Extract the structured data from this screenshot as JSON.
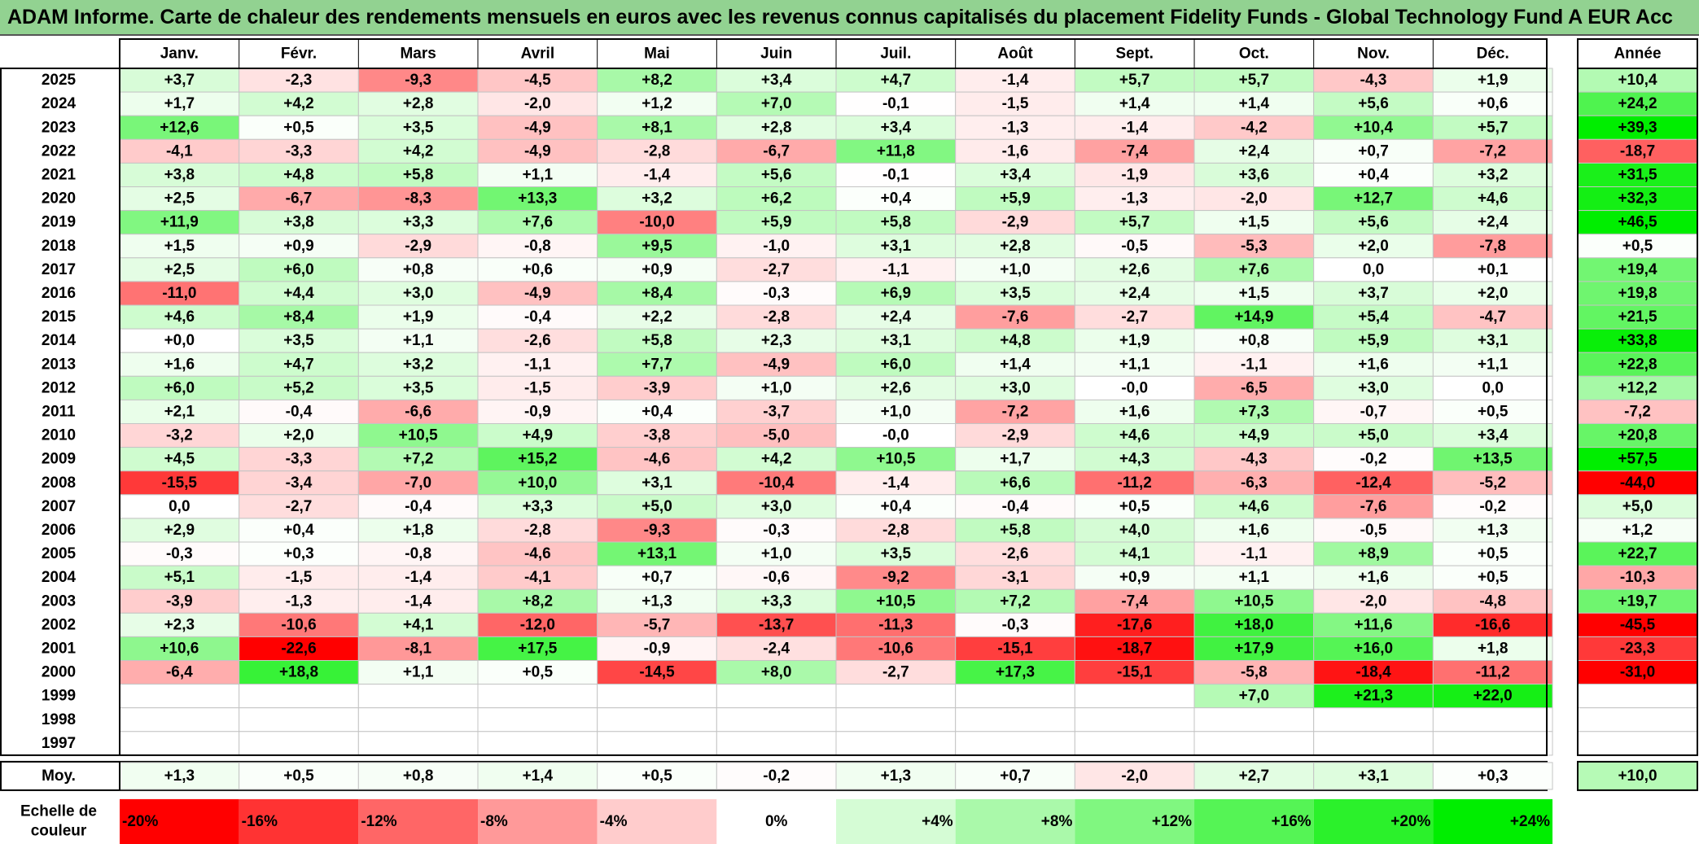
{
  "title": "ADAM Informe. Carte de chaleur des rendements mensuels en euros avec les revenus connus capitalisés du placement Fidelity Funds - Global Technology Fund A EUR Acc",
  "chart_data": {
    "type": "heatmap",
    "months": [
      "Janv.",
      "Févr.",
      "Mars",
      "Avril",
      "Mai",
      "Juin",
      "Juil.",
      "Août",
      "Sept.",
      "Oct.",
      "Nov.",
      "Déc."
    ],
    "year_header": "Année",
    "rows": [
      {
        "year": "2025",
        "values": [
          "+3,7",
          "-2,3",
          "-9,3",
          "-4,5",
          "+8,2",
          "+3,4",
          "+4,7",
          "-1,4",
          "+5,7",
          "+5,7",
          "-4,3",
          "+1,9"
        ],
        "annual": "+10,4"
      },
      {
        "year": "2024",
        "values": [
          "+1,7",
          "+4,2",
          "+2,8",
          "-2,0",
          "+1,2",
          "+7,0",
          "-0,1",
          "-1,5",
          "+1,4",
          "+1,4",
          "+5,6",
          "+0,6"
        ],
        "annual": "+24,2"
      },
      {
        "year": "2023",
        "values": [
          "+12,6",
          "+0,5",
          "+3,5",
          "-4,9",
          "+8,1",
          "+2,8",
          "+3,4",
          "-1,3",
          "-1,4",
          "-4,2",
          "+10,4",
          "+5,7"
        ],
        "annual": "+39,3"
      },
      {
        "year": "2022",
        "values": [
          "-4,1",
          "-3,3",
          "+4,2",
          "-4,9",
          "-2,8",
          "-6,7",
          "+11,8",
          "-1,6",
          "-7,4",
          "+2,4",
          "+0,7",
          "-7,2"
        ],
        "annual": "-18,7"
      },
      {
        "year": "2021",
        "values": [
          "+3,8",
          "+4,8",
          "+5,8",
          "+1,1",
          "-1,4",
          "+5,6",
          "-0,1",
          "+3,4",
          "-1,9",
          "+3,6",
          "+0,4",
          "+3,2"
        ],
        "annual": "+31,5"
      },
      {
        "year": "2020",
        "values": [
          "+2,5",
          "-6,7",
          "-8,3",
          "+13,3",
          "+3,2",
          "+6,2",
          "+0,4",
          "+5,9",
          "-1,3",
          "-2,0",
          "+12,7",
          "+4,6"
        ],
        "annual": "+32,3"
      },
      {
        "year": "2019",
        "values": [
          "+11,9",
          "+3,8",
          "+3,3",
          "+7,6",
          "-10,0",
          "+5,9",
          "+5,8",
          "-2,9",
          "+5,7",
          "+1,5",
          "+5,6",
          "+2,4"
        ],
        "annual": "+46,5"
      },
      {
        "year": "2018",
        "values": [
          "+1,5",
          "+0,9",
          "-2,9",
          "-0,8",
          "+9,5",
          "-1,0",
          "+3,1",
          "+2,8",
          "-0,5",
          "-5,3",
          "+2,0",
          "-7,8"
        ],
        "annual": "+0,5"
      },
      {
        "year": "2017",
        "values": [
          "+2,5",
          "+6,0",
          "+0,8",
          "+0,6",
          "+0,9",
          "-2,7",
          "-1,1",
          "+1,0",
          "+2,6",
          "+7,6",
          "0,0",
          "+0,1"
        ],
        "annual": "+19,4"
      },
      {
        "year": "2016",
        "values": [
          "-11,0",
          "+4,4",
          "+3,0",
          "-4,9",
          "+8,4",
          "-0,3",
          "+6,9",
          "+3,5",
          "+2,4",
          "+1,5",
          "+3,7",
          "+2,0"
        ],
        "annual": "+19,8"
      },
      {
        "year": "2015",
        "values": [
          "+4,6",
          "+8,4",
          "+1,9",
          "-0,4",
          "+2,2",
          "-2,8",
          "+2,4",
          "-7,6",
          "-2,7",
          "+14,9",
          "+5,4",
          "-4,7"
        ],
        "annual": "+21,5"
      },
      {
        "year": "2014",
        "values": [
          "+0,0",
          "+3,5",
          "+1,1",
          "-2,6",
          "+5,8",
          "+2,3",
          "+3,1",
          "+4,8",
          "+1,9",
          "+0,8",
          "+5,9",
          "+3,1"
        ],
        "annual": "+33,8"
      },
      {
        "year": "2013",
        "values": [
          "+1,6",
          "+4,7",
          "+3,2",
          "-1,1",
          "+7,7",
          "-4,9",
          "+6,0",
          "+1,4",
          "+1,1",
          "-1,1",
          "+1,6",
          "+1,1"
        ],
        "annual": "+22,8"
      },
      {
        "year": "2012",
        "values": [
          "+6,0",
          "+5,2",
          "+3,5",
          "-1,5",
          "-3,9",
          "+1,0",
          "+2,6",
          "+3,0",
          "-0,0",
          "-6,5",
          "+3,0",
          "0,0"
        ],
        "annual": "+12,2"
      },
      {
        "year": "2011",
        "values": [
          "+2,1",
          "-0,4",
          "-6,6",
          "-0,9",
          "+0,4",
          "-3,7",
          "+1,0",
          "-7,2",
          "+1,6",
          "+7,3",
          "-0,7",
          "+0,5"
        ],
        "annual": "-7,2"
      },
      {
        "year": "2010",
        "values": [
          "-3,2",
          "+2,0",
          "+10,5",
          "+4,9",
          "-3,8",
          "-5,0",
          "-0,0",
          "-2,9",
          "+4,6",
          "+4,9",
          "+5,0",
          "+3,4"
        ],
        "annual": "+20,8"
      },
      {
        "year": "2009",
        "values": [
          "+4,5",
          "-3,3",
          "+7,2",
          "+15,2",
          "-4,6",
          "+4,2",
          "+10,5",
          "+1,7",
          "+4,3",
          "-4,3",
          "-0,2",
          "+13,5"
        ],
        "annual": "+57,5"
      },
      {
        "year": "2008",
        "values": [
          "-15,5",
          "-3,4",
          "-7,0",
          "+10,0",
          "+3,1",
          "-10,4",
          "-1,4",
          "+6,6",
          "-11,2",
          "-6,3",
          "-12,4",
          "-5,2"
        ],
        "annual": "-44,0"
      },
      {
        "year": "2007",
        "values": [
          "0,0",
          "-2,7",
          "-0,4",
          "+3,3",
          "+5,0",
          "+3,0",
          "+0,4",
          "-0,4",
          "+0,5",
          "+4,6",
          "-7,6",
          "-0,2"
        ],
        "annual": "+5,0"
      },
      {
        "year": "2006",
        "values": [
          "+2,9",
          "+0,4",
          "+1,8",
          "-2,8",
          "-9,3",
          "-0,3",
          "-2,8",
          "+5,8",
          "+4,0",
          "+1,6",
          "-0,5",
          "+1,3"
        ],
        "annual": "+1,2"
      },
      {
        "year": "2005",
        "values": [
          "-0,3",
          "+0,3",
          "-0,8",
          "-4,6",
          "+13,1",
          "+1,0",
          "+3,5",
          "-2,6",
          "+4,1",
          "-1,1",
          "+8,9",
          "+0,5"
        ],
        "annual": "+22,7"
      },
      {
        "year": "2004",
        "values": [
          "+5,1",
          "-1,5",
          "-1,4",
          "-4,1",
          "+0,7",
          "-0,6",
          "-9,2",
          "-3,1",
          "+0,9",
          "+1,1",
          "+1,6",
          "+0,5"
        ],
        "annual": "-10,3"
      },
      {
        "year": "2003",
        "values": [
          "-3,9",
          "-1,3",
          "-1,4",
          "+8,2",
          "+1,3",
          "+3,3",
          "+10,5",
          "+7,2",
          "-7,4",
          "+10,5",
          "-2,0",
          "-4,8"
        ],
        "annual": "+19,7"
      },
      {
        "year": "2002",
        "values": [
          "+2,3",
          "-10,6",
          "+4,1",
          "-12,0",
          "-5,7",
          "-13,7",
          "-11,3",
          "-0,3",
          "-17,6",
          "+18,0",
          "+11,6",
          "-16,6"
        ],
        "annual": "-45,5"
      },
      {
        "year": "2001",
        "values": [
          "+10,6",
          "-22,6",
          "-8,1",
          "+17,5",
          "-0,9",
          "-2,4",
          "-10,6",
          "-15,1",
          "-18,7",
          "+17,9",
          "+16,0",
          "+1,8"
        ],
        "annual": "-23,3"
      },
      {
        "year": "2000",
        "values": [
          "-6,4",
          "+18,8",
          "+1,1",
          "+0,5",
          "-14,5",
          "+8,0",
          "-2,7",
          "+17,3",
          "-15,1",
          "-5,8",
          "-18,4",
          "-11,2"
        ],
        "annual": "-31,0"
      },
      {
        "year": "1999",
        "values": [
          "",
          "",
          "",
          "",
          "",
          "",
          "",
          "",
          "",
          "+7,0",
          "+21,3",
          "+22,0"
        ],
        "annual": ""
      },
      {
        "year": "1998",
        "values": [
          "",
          "",
          "",
          "",
          "",
          "",
          "",
          "",
          "",
          "",
          "",
          ""
        ],
        "annual": ""
      },
      {
        "year": "1997",
        "values": [
          "",
          "",
          "",
          "",
          "",
          "",
          "",
          "",
          "",
          "",
          "",
          ""
        ],
        "annual": ""
      }
    ],
    "average": {
      "label": "Moy.",
      "values": [
        "+1,3",
        "+0,5",
        "+0,8",
        "+1,4",
        "+0,5",
        "-0,2",
        "+1,3",
        "+0,7",
        "-2,0",
        "+2,7",
        "+3,1",
        "+0,3"
      ],
      "annual": "+10,0"
    },
    "color_scale": {
      "label_line1": "Echelle de",
      "label_line2": "couleur",
      "stops": [
        "-20%",
        "-16%",
        "-12%",
        "-8%",
        "-4%",
        "0%",
        "+4%",
        "+8%",
        "+12%",
        "+16%",
        "+20%",
        "+24%"
      ]
    },
    "colors": {
      "negative_max": "#ff0000",
      "neutral": "#ffffff",
      "positive_max": "#00ee00",
      "title_background": "#92d291"
    }
  }
}
